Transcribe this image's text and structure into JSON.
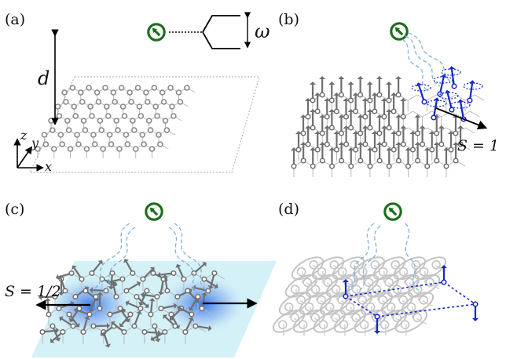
{
  "panels": [
    {
      "label": "(a)"
    },
    {
      "label": "(b)"
    },
    {
      "label": "(c)"
    },
    {
      "label": "(d)"
    }
  ],
  "panel_a": {
    "distance_label": "d",
    "frequency_label": "ω",
    "axis_z": "z",
    "axis_y": "y",
    "axis_x": "x"
  },
  "panel_b": {
    "spin_label": "S = 1"
  },
  "panel_c": {
    "spin_label": "S = 1/2"
  },
  "colors": {
    "qubit": "#1a6e1a",
    "lattice": "#8a8a8a",
    "arrow_gray": "#6f6f6f",
    "arrow_blue": "#1428c8",
    "wavy": "#7fb3d9",
    "glow": "#cdeef6",
    "bond": "#c8c8c8"
  }
}
